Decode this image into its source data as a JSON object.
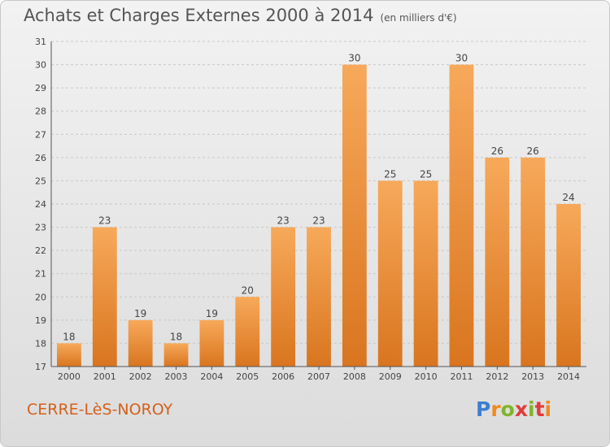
{
  "header": {
    "title": "Achats et Charges Externes 2000 à 2014",
    "unit": "(en milliers d'€)"
  },
  "footer": {
    "commune": "CERRE-LèS-NOROY",
    "logo": "Proxiti"
  },
  "colors": {
    "bar_light": "#f7a95a",
    "bar_dark": "#d9751f",
    "axis": "#555555",
    "grid": "#c8c8c8"
  },
  "chart_data": {
    "type": "bar",
    "title": "Achats et Charges Externes 2000 à 2014",
    "xlabel": "",
    "ylabel": "",
    "categories": [
      "2000",
      "2001",
      "2002",
      "2003",
      "2004",
      "2005",
      "2006",
      "2007",
      "2008",
      "2009",
      "2010",
      "2011",
      "2012",
      "2013",
      "2014"
    ],
    "values": [
      18,
      23,
      19,
      18,
      19,
      20,
      23,
      23,
      30,
      25,
      25,
      30,
      26,
      26,
      24
    ],
    "ylim": [
      17,
      31
    ],
    "yticks": [
      17,
      18,
      19,
      20,
      21,
      22,
      23,
      24,
      25,
      26,
      27,
      28,
      29,
      30,
      31
    ],
    "grid": true,
    "data_labels": true
  }
}
